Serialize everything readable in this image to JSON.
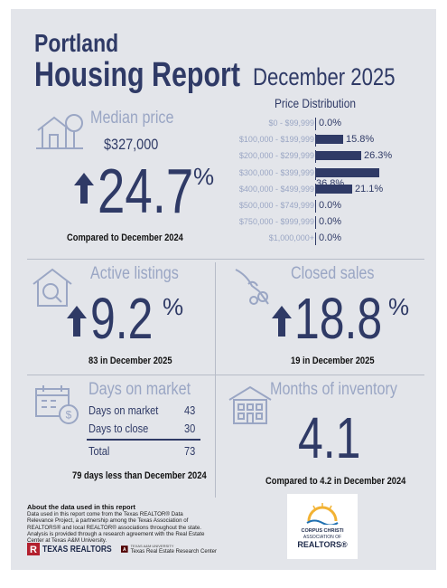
{
  "header": {
    "city": "Portland",
    "report": "Housing Report",
    "month": "December 2025"
  },
  "median": {
    "title": "Median price",
    "price": "$327,000",
    "change": "24.7",
    "percent_sign": "%",
    "compare": "Compared to December 2024",
    "icon": "house-tree-icon"
  },
  "price_distribution": {
    "title": "Price Distribution",
    "rows": [
      {
        "label": "$0 - $99,999",
        "value": "0.0%",
        "pct": 0.0
      },
      {
        "label": "$100,000 - $199,999",
        "value": "15.8%",
        "pct": 15.8
      },
      {
        "label": "$200,000 - $299,999",
        "value": "26.3%",
        "pct": 26.3
      },
      {
        "label": "$300,000 - $399,999",
        "value": "36.8%",
        "pct": 36.8
      },
      {
        "label": "$400,000 - $499,999",
        "value": "21.1%",
        "pct": 21.1
      },
      {
        "label": "$500,000 - $749,999",
        "value": "0.0%",
        "pct": 0.0
      },
      {
        "label": "$750,000 - $999,999",
        "value": "0.0%",
        "pct": 0.0
      },
      {
        "label": "$1,000,000+",
        "value": "0.0%",
        "pct": 0.0
      }
    ]
  },
  "active": {
    "title": "Active listings",
    "change": "9.2",
    "percent_sign": "%",
    "note": "83 in December 2025",
    "icon": "house-magnifier-icon"
  },
  "closed": {
    "title": "Closed sales",
    "change": "18.8",
    "percent_sign": "%",
    "note": "19 in December 2025",
    "icon": "hand-keys-icon"
  },
  "days": {
    "title": "Days on market",
    "rows": [
      {
        "label": "Days on market",
        "value": "43"
      },
      {
        "label": "Days to close",
        "value": "30"
      }
    ],
    "total_label": "Total",
    "total_value": "73",
    "note": "79 days less than December 2024",
    "icon": "calendar-dollar-icon"
  },
  "inventory": {
    "title": "Months of inventory",
    "value": "4.1",
    "note": "Compared to 4.2 in December 2024",
    "icon": "building-icon"
  },
  "about": {
    "heading": "About the data used in this report",
    "text": "Data used in this report come from the Texas REALTOR® Data Relevance Project, a partnership among the Texas Association of REALTORS® and local REALTOR® associations throughout the state. Analysis is provided through a research agreement with the Real Estate Center at Texas A&M University."
  },
  "logos": {
    "texas_realtors": "TEXAS REALTORS",
    "research_center_small": "TEXAS A&M UNIVERSITY",
    "research_center": "Texas Real Estate Research Center",
    "corpus_1": "CORPUS CHRISTI",
    "corpus_2": "ASSOCIATION OF",
    "corpus_3": "REALTORS®"
  },
  "colors": {
    "navy": "#2f3a66",
    "muted": "#9aa6c4",
    "background": "#e3e5ea"
  }
}
